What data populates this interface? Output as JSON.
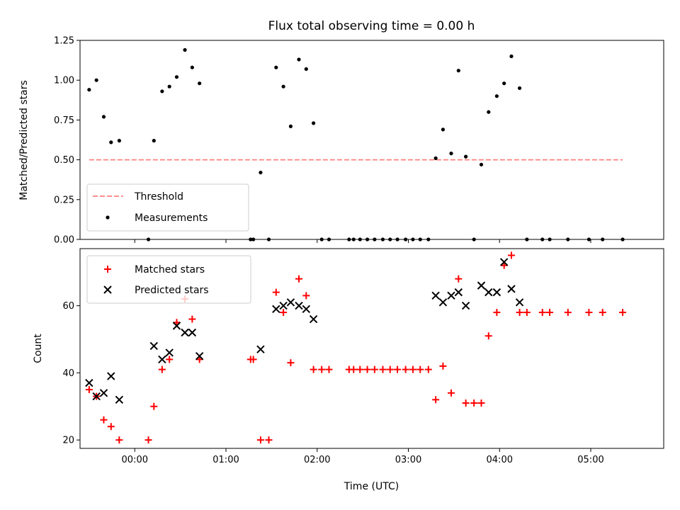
{
  "figure": {
    "title": "Flux total observing time = 0.00 h",
    "xlabel": "Time (UTC)"
  },
  "chart_data": [
    {
      "type": "scatter",
      "ylabel": "Matched/Predicted stars",
      "ylim": [
        0,
        1.25
      ],
      "yticks": [
        0,
        0.25,
        0.5,
        0.75,
        1.0,
        1.25
      ],
      "ytick_labels": [
        "0.00",
        "0.25",
        "0.50",
        "0.75",
        "1.00",
        "1.25"
      ],
      "xlim_hours": [
        -0.6,
        5.8
      ],
      "legend": {
        "placement": "lower-left"
      },
      "threshold": {
        "name": "Threshold",
        "value": 0.5,
        "x_range": [
          -0.5,
          5.35
        ],
        "color": "#ff7f7f"
      },
      "series": [
        {
          "name": "Measurements",
          "color": "#000000",
          "points": [
            [
              -0.5,
              0.94
            ],
            [
              -0.42,
              1.0
            ],
            [
              -0.34,
              0.77
            ],
            [
              -0.26,
              0.61
            ],
            [
              -0.17,
              0.62
            ],
            [
              0.15,
              0.0
            ],
            [
              0.21,
              0.62
            ],
            [
              0.3,
              0.93
            ],
            [
              0.38,
              0.96
            ],
            [
              0.46,
              1.02
            ],
            [
              0.55,
              1.19
            ],
            [
              0.63,
              1.08
            ],
            [
              0.71,
              0.98
            ],
            [
              1.27,
              0.0
            ],
            [
              1.3,
              0.0
            ],
            [
              1.38,
              0.42
            ],
            [
              1.47,
              0.0
            ],
            [
              1.55,
              1.08
            ],
            [
              1.63,
              0.96
            ],
            [
              1.71,
              0.71
            ],
            [
              1.8,
              1.13
            ],
            [
              1.88,
              1.07
            ],
            [
              1.96,
              0.73
            ],
            [
              2.05,
              0.0
            ],
            [
              2.13,
              0.0
            ],
            [
              2.35,
              0.0
            ],
            [
              2.4,
              0.0
            ],
            [
              2.47,
              0.0
            ],
            [
              2.55,
              0.0
            ],
            [
              2.63,
              0.0
            ],
            [
              2.72,
              0.0
            ],
            [
              2.8,
              0.0
            ],
            [
              2.88,
              0.0
            ],
            [
              2.97,
              0.0
            ],
            [
              3.05,
              0.0
            ],
            [
              3.13,
              0.0
            ],
            [
              3.22,
              0.0
            ],
            [
              3.3,
              0.51
            ],
            [
              3.38,
              0.69
            ],
            [
              3.47,
              0.54
            ],
            [
              3.55,
              1.06
            ],
            [
              3.63,
              0.52
            ],
            [
              3.72,
              0.0
            ],
            [
              3.8,
              0.47
            ],
            [
              3.88,
              0.8
            ],
            [
              3.97,
              0.9
            ],
            [
              4.05,
              0.98
            ],
            [
              4.13,
              1.15
            ],
            [
              4.22,
              0.95
            ],
            [
              4.3,
              0.0
            ],
            [
              4.47,
              0.0
            ],
            [
              4.55,
              0.0
            ],
            [
              4.75,
              0.0
            ],
            [
              4.98,
              0.0
            ],
            [
              5.13,
              0.0
            ],
            [
              5.35,
              0.0
            ]
          ]
        }
      ]
    },
    {
      "type": "scatter",
      "ylabel": "Count",
      "ylim": [
        17.5,
        77
      ],
      "yticks": [
        20,
        40,
        60
      ],
      "ytick_labels": [
        "20",
        "40",
        "60"
      ],
      "xlim_hours": [
        -0.6,
        5.8
      ],
      "xticks_hours": [
        0,
        1,
        2,
        3,
        4,
        5
      ],
      "xtick_labels": [
        "00:00",
        "01:00",
        "02:00",
        "03:00",
        "04:00",
        "05:00"
      ],
      "legend": {
        "placement": "top-left"
      },
      "series": [
        {
          "name": "Matched stars",
          "marker": "plus",
          "color": "#ff0000",
          "points": [
            [
              -0.5,
              35
            ],
            [
              -0.42,
              33
            ],
            [
              -0.34,
              26
            ],
            [
              -0.26,
              24
            ],
            [
              -0.17,
              20
            ],
            [
              0.15,
              20
            ],
            [
              0.21,
              30
            ],
            [
              0.3,
              41
            ],
            [
              0.38,
              44
            ],
            [
              0.46,
              55
            ],
            [
              0.55,
              62
            ],
            [
              0.63,
              56
            ],
            [
              0.71,
              44
            ],
            [
              1.27,
              44
            ],
            [
              1.3,
              44
            ],
            [
              1.38,
              20
            ],
            [
              1.47,
              20
            ],
            [
              1.55,
              64
            ],
            [
              1.63,
              58
            ],
            [
              1.71,
              43
            ],
            [
              1.8,
              68
            ],
            [
              1.88,
              63
            ],
            [
              1.96,
              41
            ],
            [
              2.05,
              41
            ],
            [
              2.13,
              41
            ],
            [
              2.35,
              41
            ],
            [
              2.4,
              41
            ],
            [
              2.47,
              41
            ],
            [
              2.55,
              41
            ],
            [
              2.63,
              41
            ],
            [
              2.72,
              41
            ],
            [
              2.8,
              41
            ],
            [
              2.88,
              41
            ],
            [
              2.97,
              41
            ],
            [
              3.05,
              41
            ],
            [
              3.13,
              41
            ],
            [
              3.22,
              41
            ],
            [
              3.3,
              32
            ],
            [
              3.38,
              42
            ],
            [
              3.47,
              34
            ],
            [
              3.55,
              68
            ],
            [
              3.63,
              31
            ],
            [
              3.72,
              31
            ],
            [
              3.8,
              31
            ],
            [
              3.88,
              51
            ],
            [
              3.97,
              58
            ],
            [
              4.05,
              72
            ],
            [
              4.13,
              75
            ],
            [
              4.22,
              58
            ],
            [
              4.3,
              58
            ],
            [
              4.47,
              58
            ],
            [
              4.55,
              58
            ],
            [
              4.75,
              58
            ],
            [
              4.98,
              58
            ],
            [
              5.13,
              58
            ],
            [
              5.35,
              58
            ]
          ]
        },
        {
          "name": "Predicted stars",
          "marker": "x",
          "color": "#000000",
          "points": [
            [
              -0.5,
              37
            ],
            [
              -0.42,
              33
            ],
            [
              -0.34,
              34
            ],
            [
              -0.26,
              39
            ],
            [
              -0.17,
              32
            ],
            [
              0.21,
              48
            ],
            [
              0.3,
              44
            ],
            [
              0.38,
              46
            ],
            [
              0.46,
              54
            ],
            [
              0.55,
              52
            ],
            [
              0.63,
              52
            ],
            [
              0.71,
              45
            ],
            [
              1.38,
              47
            ],
            [
              1.55,
              59
            ],
            [
              1.63,
              60
            ],
            [
              1.71,
              61
            ],
            [
              1.8,
              60
            ],
            [
              1.88,
              59
            ],
            [
              1.96,
              56
            ],
            [
              3.3,
              63
            ],
            [
              3.38,
              61
            ],
            [
              3.47,
              63
            ],
            [
              3.55,
              64
            ],
            [
              3.63,
              60
            ],
            [
              3.8,
              66
            ],
            [
              3.88,
              64
            ],
            [
              3.97,
              64
            ],
            [
              4.05,
              73
            ],
            [
              4.13,
              65
            ],
            [
              4.22,
              61
            ]
          ]
        }
      ]
    }
  ]
}
